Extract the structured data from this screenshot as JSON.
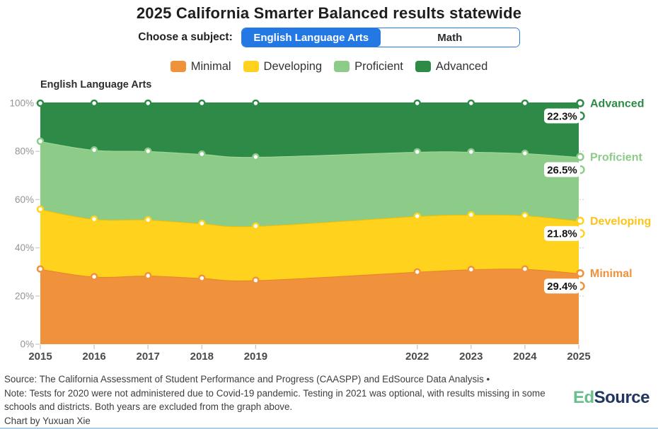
{
  "header": {
    "title": "2025 California Smarter Balanced results statewide"
  },
  "subject_toggle": {
    "label": "Choose a subject:",
    "accent_color": "#2478E4",
    "options": [
      {
        "label": "English Language Arts",
        "selected": true
      },
      {
        "label": "Math",
        "selected": false
      }
    ]
  },
  "legend": {
    "items": [
      {
        "label": "Minimal",
        "color": "#F0913B"
      },
      {
        "label": "Developing",
        "color": "#FFD21E"
      },
      {
        "label": "Proficient",
        "color": "#8CCB88"
      },
      {
        "label": "Advanced",
        "color": "#2E8B47"
      }
    ]
  },
  "chart_data": {
    "type": "area",
    "stacked": true,
    "title": "English Language Arts",
    "x": [
      2015,
      2016,
      2017,
      2018,
      2019,
      2022,
      2023,
      2024,
      2025
    ],
    "x_excluded": [
      2020,
      2021
    ],
    "ylim": [
      0,
      100
    ],
    "yticks": [
      0,
      20,
      40,
      60,
      80,
      100
    ],
    "ytick_format": "percent",
    "legend_position": "top",
    "series": [
      {
        "name": "Minimal",
        "color": "#F0913B",
        "edge": "#E8822A",
        "label_color": "#F0913B",
        "values": [
          31.2,
          28.0,
          28.4,
          27.4,
          26.5,
          30.0,
          31.0,
          31.2,
          29.4
        ],
        "end_label": "29.4%"
      },
      {
        "name": "Developing",
        "color": "#FFD21E",
        "edge": "#F2BF00",
        "label_color": "#FCC419",
        "values": [
          24.8,
          23.9,
          23.2,
          22.7,
          22.5,
          23.1,
          22.7,
          22.2,
          21.8
        ],
        "end_label": "21.8%"
      },
      {
        "name": "Proficient",
        "color": "#8CCB88",
        "edge": "#A5DA9E",
        "label_color": "#8CCB88",
        "values": [
          28.2,
          28.7,
          28.5,
          28.8,
          28.7,
          26.7,
          26.1,
          25.8,
          26.5
        ],
        "end_label": "26.5%"
      },
      {
        "name": "Advanced",
        "color": "#2E8B47",
        "edge": "#2E8B47",
        "label_color": "#2E8B47",
        "values": [
          15.8,
          19.4,
          19.9,
          21.1,
          22.3,
          20.2,
          20.2,
          20.8,
          22.3
        ],
        "end_label": "22.3%"
      }
    ]
  },
  "footer": {
    "source": "Source: The California Assessment of Student Performance and Progress (CAASPP) and EdSource Data Analysis •",
    "note": "Note: Tests for 2020 were not administered due to Covid-19 pandemic. Testing in 2021 was optional, with results missing in some schools and districts. Both years are excluded from the graph above.",
    "credit": "Chart by Yuxuan Xie",
    "logo": {
      "part1": "Ed",
      "part2": "Source",
      "part1_color": "#69BE8E",
      "part2_color": "#21365F"
    }
  }
}
